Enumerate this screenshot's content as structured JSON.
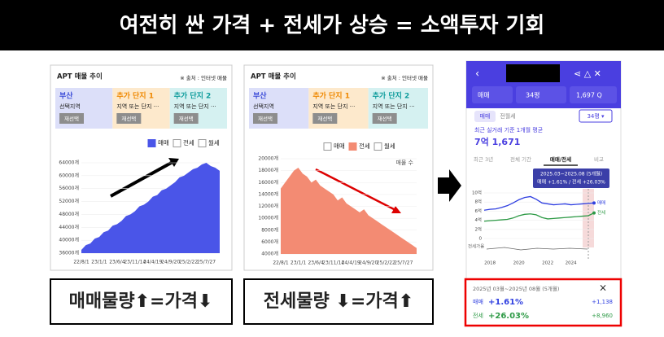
{
  "header": {
    "title": "여전히 싼 가격 + 전세가 상승 = 소액투자 기회"
  },
  "panels": [
    {
      "title": "APT 매물 추이",
      "source": "※ 출처 : 인터넷 매물",
      "filters": [
        {
          "region": "부산",
          "sub": "선택지역",
          "button": "재선택"
        },
        {
          "region": "추가 단지 1",
          "sub": "지역 또는 단지 ···",
          "button": "재선택"
        },
        {
          "region": "추가 단지 2",
          "sub": "지역 또는 단지 ···",
          "button": "재선택"
        }
      ],
      "caption": "매매물량⬆=가격⬇"
    },
    {
      "title": "APT 매물 추이",
      "source": "※ 출처 : 인터넷 매물",
      "filters": [
        {
          "region": "부산",
          "sub": "선택지역",
          "button": "재선택"
        },
        {
          "region": "추가 단지 1",
          "sub": "지역 또는 단지 ···",
          "button": "재선택"
        },
        {
          "region": "추가 단지 2",
          "sub": "지역 또는 단지 ···",
          "button": "재선택"
        }
      ],
      "caption": "전세물량 ⬇=가격⬆"
    }
  ],
  "phone": {
    "top": [
      "매매",
      "34평",
      "1,697 Q"
    ],
    "toggle": [
      "매매",
      "전월세"
    ],
    "size": "34평 ▾",
    "avg_label": "최근 실거래 기준 1개월 평균",
    "avg_value": "7억 1,671",
    "tabs": [
      "최근 3년",
      "전체 기간",
      "매매/전세",
      "비교"
    ],
    "tooltip": [
      "2025.03~2025.08 (5개월)",
      "매매 +1.61%  /  전세 +26.03%"
    ],
    "ratio_label": "전세가율",
    "card": {
      "period": "2025년 03월~2025년 08월 (5개월)",
      "close": "×",
      "rows": [
        {
          "name": "매매",
          "pct": "+1.61%",
          "amount": "+1,138"
        },
        {
          "name": "전세",
          "pct": "+26.03%",
          "amount": "+8,960"
        }
      ]
    }
  },
  "chart_data": [
    {
      "type": "area",
      "ylim": [
        36000,
        64000
      ],
      "yticks": [
        {
          "value": 36000,
          "label": "36000개"
        },
        {
          "value": 40000,
          "label": "40000개"
        },
        {
          "value": 44000,
          "label": "44000개"
        },
        {
          "value": 48000,
          "label": "48000개"
        },
        {
          "value": 52000,
          "label": "52000개"
        },
        {
          "value": 56000,
          "label": "56000개"
        },
        {
          "value": 60000,
          "label": "60000개"
        },
        {
          "value": 64000,
          "label": "64000개"
        }
      ],
      "categories": [
        "22/8/1",
        null,
        null,
        null,
        "23/1/1",
        null,
        null,
        null,
        "23/6/4",
        null,
        null,
        null,
        "23/11/14",
        null,
        null,
        null,
        "24/4/19",
        null,
        null,
        null,
        "24/9/20",
        null,
        null,
        null,
        "25/2/22",
        null,
        null,
        null,
        "25/7/27",
        null,
        null,
        null
      ],
      "series": [
        {
          "name": "매매",
          "color": "#4a55e8",
          "values": [
            37000,
            38500,
            39000,
            40500,
            41000,
            42500,
            43000,
            44500,
            45000,
            46000,
            47500,
            48000,
            49000,
            50500,
            51000,
            52000,
            53500,
            54000,
            55500,
            56000,
            57000,
            58000,
            59500,
            60000,
            61000,
            62000,
            62500,
            63500,
            64000,
            63000,
            62500,
            61500
          ]
        }
      ],
      "legend": [
        {
          "label": "매매",
          "checked": true,
          "color": "#4a55e8"
        },
        {
          "label": "전세",
          "checked": false,
          "color": "#f38b73"
        },
        {
          "label": "월세",
          "checked": false,
          "color": "#999999"
        }
      ]
    },
    {
      "type": "area",
      "ylim": [
        4000,
        20000
      ],
      "yticks": [
        {
          "value": 4000,
          "label": "4000개"
        },
        {
          "value": 6000,
          "label": "6000개"
        },
        {
          "value": 8000,
          "label": "8000개"
        },
        {
          "value": 10000,
          "label": "10000개"
        },
        {
          "value": 12000,
          "label": "12000개"
        },
        {
          "value": 14000,
          "label": "14000개"
        },
        {
          "value": 16000,
          "label": "16000개"
        },
        {
          "value": 18000,
          "label": "18000개"
        },
        {
          "value": 20000,
          "label": "20000개"
        }
      ],
      "categories": [
        "22/8/1",
        null,
        null,
        null,
        "23/1/1",
        null,
        null,
        null,
        "23/6/4",
        null,
        null,
        null,
        "23/11/14",
        null,
        null,
        null,
        "24/4/19",
        null,
        null,
        null,
        "24/9/20",
        null,
        null,
        null,
        "25/2/22",
        null,
        null,
        null,
        "25/7/27",
        null,
        null,
        null
      ],
      "series": [
        {
          "name": "전세",
          "color": "#f38b73",
          "values": [
            15000,
            16000,
            17000,
            18000,
            18500,
            17500,
            17000,
            16000,
            16500,
            15500,
            15000,
            14500,
            14000,
            13000,
            13500,
            12500,
            12000,
            11500,
            11000,
            11500,
            10500,
            10000,
            9500,
            9000,
            8500,
            8000,
            7500,
            7000,
            6500,
            6000,
            5500,
            5000
          ]
        }
      ],
      "legend": [
        {
          "label": "매매",
          "checked": false,
          "color": "#4a55e8"
        },
        {
          "label": "전세",
          "checked": true,
          "color": "#f38b73"
        },
        {
          "label": "월세",
          "checked": false,
          "color": "#999999"
        }
      ],
      "annotation": "매물 수"
    },
    {
      "type": "line",
      "ylim": [
        0,
        10
      ],
      "yticks": [
        0,
        {
          "value": 2,
          "label": "2억"
        },
        {
          "value": 4,
          "label": "4억"
        },
        {
          "value": 6,
          "label": "6억"
        },
        {
          "value": 8,
          "label": "8억"
        },
        {
          "value": 10,
          "label": "10억"
        }
      ],
      "categories": [
        null,
        "2018",
        null,
        null,
        null,
        null,
        "2020",
        null,
        null,
        null,
        null,
        "2022",
        null,
        null,
        null,
        "2024",
        null,
        null,
        null,
        null
      ],
      "series": [
        {
          "name": "매매",
          "color": "#2f3fe0",
          "values": [
            6.2,
            6.4,
            6.5,
            6.8,
            7.2,
            7.8,
            8.5,
            9.0,
            9.2,
            8.6,
            7.8,
            7.6,
            7.4,
            7.5,
            7.6,
            7.4,
            7.5,
            7.6,
            7.7,
            7.8
          ]
        },
        {
          "name": "전세",
          "color": "#2e9a46",
          "values": [
            3.8,
            3.9,
            4.0,
            4.1,
            4.2,
            4.5,
            5.0,
            5.3,
            5.4,
            5.2,
            4.6,
            4.3,
            4.4,
            4.5,
            4.6,
            4.7,
            4.8,
            4.9,
            5.0,
            5.6
          ]
        }
      ]
    }
  ]
}
